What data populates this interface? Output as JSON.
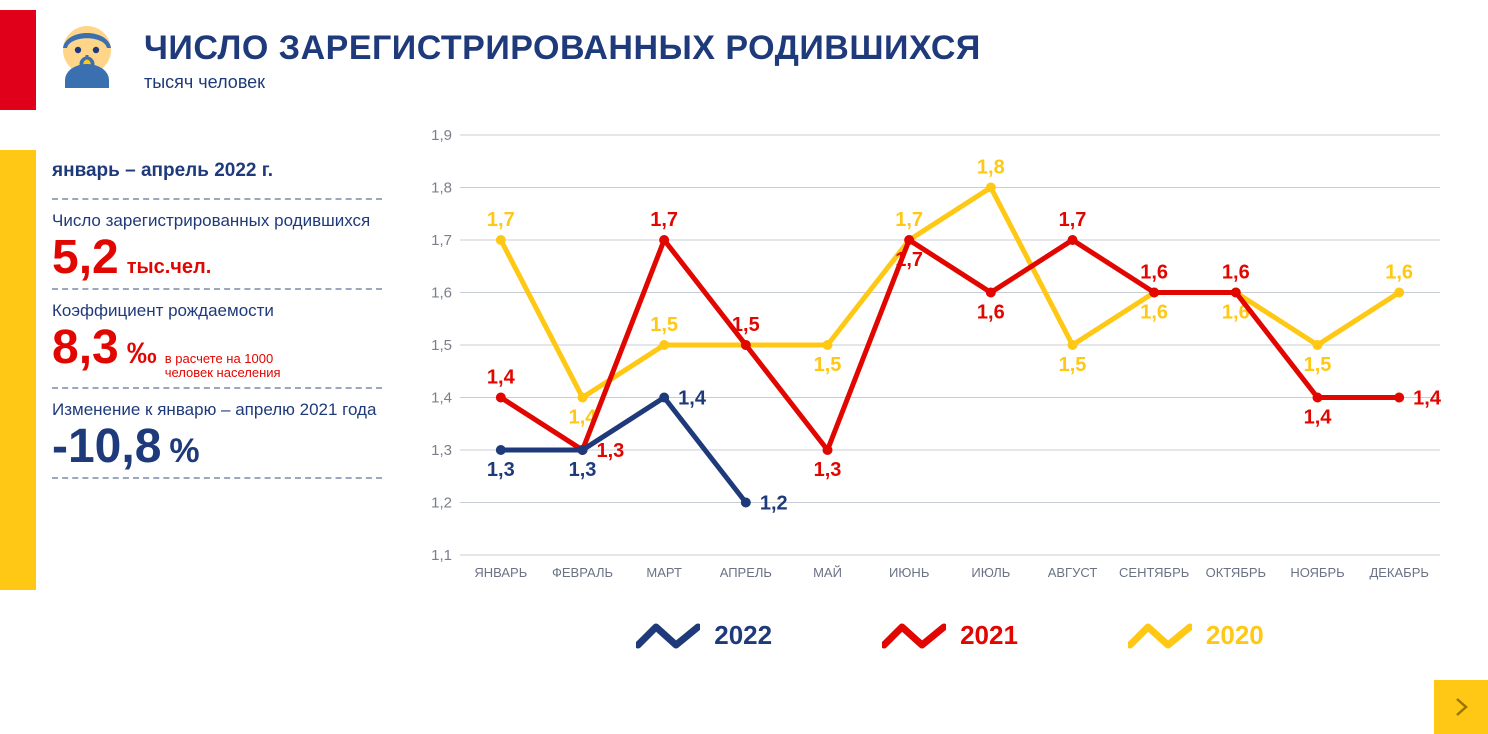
{
  "header": {
    "title": "ЧИСЛО ЗАРЕГИСТРИРОВАННЫХ РОДИВШИХСЯ",
    "subtitle": "тысяч человек"
  },
  "colors": {
    "navy": "#1f3a7a",
    "red": "#e10600",
    "yellow": "#ffc814",
    "grid": "#c8ccd6",
    "axis_text": "#7a7f8a",
    "accent_red_bar": "#e1001a"
  },
  "side": {
    "period": "январь – апрель 2022 г.",
    "stat1_label": "Число зарегистрированных родившихся",
    "stat1_value": "5,2",
    "stat1_unit": "тыс.чел.",
    "stat1_color": "#e10600",
    "stat1_value_fontsize": 48,
    "stat1_unit_fontsize": 20,
    "stat2_label": "Коэффициент рождаемости",
    "stat2_value": "8,3",
    "stat2_unit": "‰",
    "stat2_note": "в расчете на 1000 человек населения",
    "stat2_color": "#e10600",
    "stat2_value_fontsize": 48,
    "stat2_unit_fontsize": 30,
    "stat3_label": "Изменение к январю – апрелю 2021 года",
    "stat3_value": "-10,8",
    "stat3_unit": "%",
    "stat3_color": "#1f3a7a",
    "stat3_value_fontsize": 48,
    "stat3_unit_fontsize": 34
  },
  "chart": {
    "type": "line",
    "categories": [
      "ЯНВАРЬ",
      "ФЕВРАЛЬ",
      "МАРТ",
      "АПРЕЛЬ",
      "МАЙ",
      "ИЮНЬ",
      "ИЮЛЬ",
      "АВГУСТ",
      "СЕНТЯБРЬ",
      "ОКТЯБРЬ",
      "НОЯБРЬ",
      "ДЕКАБРЬ"
    ],
    "ylim": [
      1.1,
      1.9
    ],
    "ytick_step": 0.1,
    "yticks": [
      "1,1",
      "1,2",
      "1,3",
      "1,4",
      "1,5",
      "1,6",
      "1,7",
      "1,8",
      "1,9"
    ],
    "line_width": 5,
    "marker_radius": 5,
    "label_fontsize": 20,
    "series": [
      {
        "name": "2020",
        "color": "#ffc814",
        "values": [
          1.7,
          1.4,
          1.5,
          1.5,
          1.5,
          1.7,
          1.8,
          1.5,
          1.6,
          1.6,
          1.5,
          1.6
        ],
        "labels": [
          "1,7",
          "1,4",
          "1,5",
          "1,5",
          "1,5",
          "1,7",
          "1,8",
          "1,5",
          "1,6",
          "1,6",
          "1,5",
          "1,6"
        ],
        "label_pos": [
          "above",
          "below",
          "above",
          "omit",
          "below",
          "above",
          "above",
          "below",
          "below",
          "below",
          "below",
          "above"
        ]
      },
      {
        "name": "2021",
        "color": "#e10600",
        "values": [
          1.4,
          1.3,
          1.7,
          1.5,
          1.3,
          1.7,
          1.6,
          1.7,
          1.6,
          1.6,
          1.4,
          1.4
        ],
        "labels": [
          "1,4",
          "1,3",
          "1,7",
          "1,5",
          "1,3",
          "1,7",
          "1,6",
          "1,7",
          "1,6",
          "1,6",
          "1,4",
          "1,4"
        ],
        "label_pos": [
          "above",
          "right",
          "above",
          "above",
          "below",
          "below",
          "below",
          "above",
          "above",
          "above",
          "below",
          "right"
        ]
      },
      {
        "name": "2022",
        "color": "#1f3a7a",
        "values": [
          1.3,
          1.3,
          1.4,
          1.2
        ],
        "labels": [
          "1,3",
          "1,3",
          "1,4",
          "1,2"
        ],
        "label_pos": [
          "below",
          "below",
          "right",
          "right"
        ]
      }
    ]
  },
  "legend": {
    "items": [
      {
        "label": "2022",
        "color": "#1f3a7a"
      },
      {
        "label": "2021",
        "color": "#e10600"
      },
      {
        "label": "2020",
        "color": "#ffc814"
      }
    ]
  }
}
